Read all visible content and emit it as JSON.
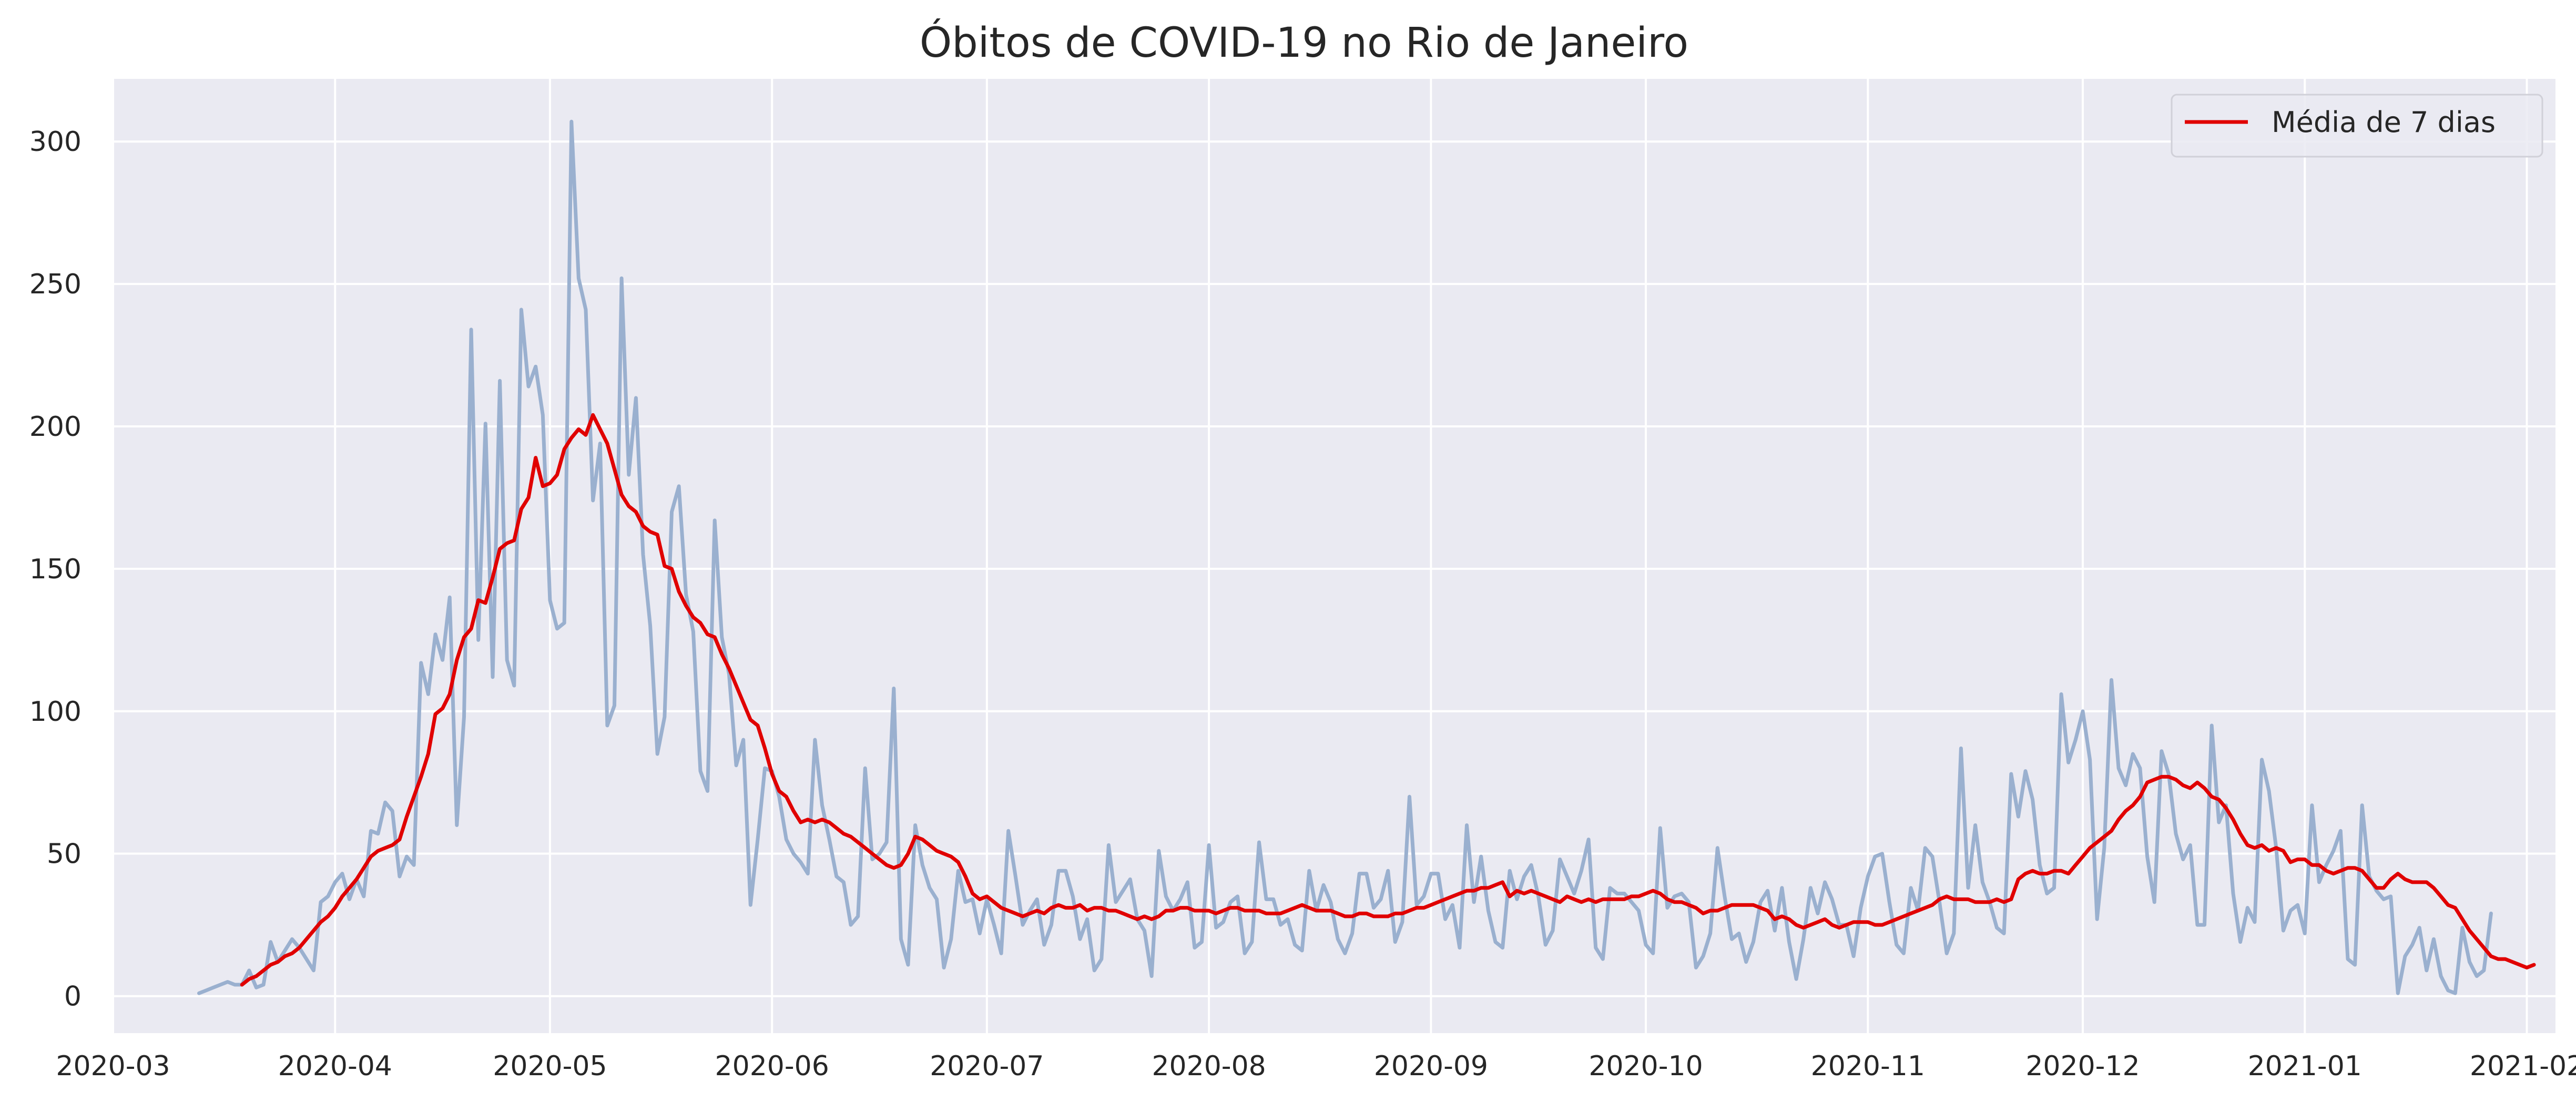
{
  "chart_data": {
    "type": "line",
    "title": "Óbitos de COVID-19 no Rio de Janeiro",
    "xlabel": "",
    "ylabel": "",
    "x_range": [
      "2020-03-01",
      "2021-02-05"
    ],
    "ylim": [
      -13,
      322
    ],
    "grid": true,
    "legend_position": "top-right",
    "colors": {
      "background": "#eaeaf2",
      "grid": "#ffffff",
      "daily": "#9ab0cf",
      "avg": "#e00000"
    },
    "x_ticks": [
      "2020-03",
      "2020-04",
      "2020-05",
      "2020-06",
      "2020-07",
      "2020-08",
      "2020-09",
      "2020-10",
      "2020-11",
      "2020-12",
      "2021-01",
      "2021-02"
    ],
    "y_ticks": [
      "0",
      "50",
      "100",
      "150",
      "200",
      "250",
      "300"
    ],
    "series": [
      {
        "type": "daily",
        "start_date": "2020-03-13",
        "values": [
          1,
          2,
          3,
          4,
          5,
          4,
          4,
          9,
          3,
          4,
          19,
          12,
          16,
          20,
          17,
          13,
          9,
          33,
          35,
          40,
          43,
          34,
          41,
          35,
          58,
          57,
          68,
          65,
          42,
          49,
          46,
          117,
          106,
          127,
          118,
          140,
          60,
          98,
          234,
          125,
          201,
          112,
          216,
          118,
          109,
          241,
          214,
          221,
          204,
          139,
          129,
          131,
          307,
          252,
          241,
          174,
          194,
          95,
          102,
          252,
          183,
          210,
          155,
          130,
          85,
          98,
          170,
          179,
          141,
          128,
          79,
          72,
          167,
          126,
          113,
          81,
          90,
          32,
          55,
          80,
          79,
          70,
          55,
          50,
          47,
          43,
          90,
          67,
          55,
          42,
          40,
          25,
          28,
          80,
          48,
          50,
          54,
          108,
          20,
          11,
          60,
          46,
          38,
          34,
          10,
          20,
          44,
          33,
          34,
          22,
          34,
          25,
          15,
          58,
          42,
          25,
          30,
          34,
          18,
          25,
          44,
          44,
          35,
          20,
          27,
          9,
          13,
          53,
          33,
          37,
          41,
          27,
          23,
          7,
          51,
          35,
          30,
          34,
          40,
          17,
          19,
          53,
          24,
          26,
          33,
          35,
          15,
          19,
          54,
          34,
          34,
          25,
          27,
          18,
          16,
          44,
          30,
          39,
          33,
          20,
          15,
          22,
          43,
          43,
          31,
          34,
          44,
          19,
          26,
          70,
          32,
          35,
          43,
          43,
          27,
          32,
          17,
          60,
          33,
          49,
          30,
          19,
          17,
          44,
          34,
          42,
          46,
          35,
          18,
          23,
          48,
          42,
          36,
          44,
          55,
          17,
          13,
          38,
          36,
          36,
          33,
          30,
          18,
          15,
          59,
          31,
          35,
          36,
          33,
          10,
          14,
          22,
          52,
          35,
          20,
          22,
          12,
          19,
          33,
          37,
          23,
          38,
          19,
          6,
          20,
          38,
          29,
          40,
          34,
          25,
          25,
          14,
          31,
          42,
          49,
          50,
          33,
          18,
          15,
          38,
          30,
          52,
          49,
          33,
          15,
          22,
          87,
          38,
          60,
          40,
          33,
          24,
          22,
          78,
          63,
          79,
          69,
          46,
          36,
          38,
          106,
          82,
          90,
          100,
          83,
          27,
          52,
          111,
          80,
          74,
          85,
          80,
          49,
          33,
          86,
          78,
          57,
          48,
          53,
          25,
          25,
          95,
          61,
          67,
          36,
          19,
          31,
          26,
          83,
          72,
          52,
          23,
          30,
          32,
          22,
          67,
          40,
          46,
          51,
          58,
          13,
          11,
          67,
          42,
          37,
          34,
          35,
          1,
          14,
          18,
          24,
          9,
          20,
          7,
          2,
          1,
          24,
          12,
          7,
          9,
          29
        ]
      },
      {
        "type": "rolling_avg",
        "name": "Média de 7 dias",
        "start_date": "2020-03-19",
        "values": [
          4,
          6,
          7,
          9,
          11,
          12,
          14,
          15,
          17,
          20,
          23,
          26,
          28,
          31,
          35,
          38,
          41,
          45,
          49,
          51,
          52,
          53,
          55,
          63,
          70,
          77,
          85,
          99,
          101,
          106,
          118,
          126,
          129,
          139,
          138,
          147,
          157,
          159,
          160,
          171,
          175,
          189,
          179,
          180,
          183,
          192,
          196,
          199,
          197,
          204,
          199,
          194,
          185,
          176,
          172,
          170,
          165,
          163,
          162,
          151,
          150,
          142,
          137,
          133,
          131,
          127,
          126,
          120,
          115,
          109,
          103,
          97,
          95,
          87,
          78,
          72,
          70,
          65,
          61,
          62,
          61,
          62,
          61,
          59,
          57,
          56,
          54,
          52,
          50,
          48,
          46,
          45,
          46,
          50,
          56,
          55,
          53,
          51,
          50,
          49,
          47,
          42,
          36,
          34,
          35,
          33,
          31,
          30,
          29,
          28,
          29,
          30,
          29,
          31,
          32,
          31,
          31,
          32,
          30,
          31,
          31,
          30,
          30,
          29,
          28,
          27,
          28,
          27,
          28,
          30,
          30,
          31,
          31,
          30,
          30,
          30,
          29,
          30,
          31,
          31,
          30,
          30,
          30,
          29,
          29,
          29,
          30,
          31,
          32,
          31,
          30,
          30,
          30,
          29,
          28,
          28,
          29,
          29,
          28,
          28,
          28,
          29,
          29,
          30,
          31,
          31,
          32,
          33,
          34,
          35,
          36,
          37,
          37,
          38,
          38,
          39,
          40,
          35,
          37,
          36,
          37,
          36,
          35,
          34,
          33,
          35,
          34,
          33,
          34,
          33,
          34,
          34,
          34,
          34,
          35,
          35,
          36,
          37,
          36,
          34,
          33,
          33,
          32,
          31,
          29,
          30,
          30,
          31,
          32,
          32,
          32,
          32,
          31,
          30,
          27,
          28,
          27,
          25,
          24,
          25,
          26,
          27,
          25,
          24,
          25,
          26,
          26,
          26,
          25,
          25,
          26,
          27,
          28,
          29,
          30,
          31,
          32,
          34,
          35,
          34,
          34,
          34,
          33,
          33,
          33,
          34,
          33,
          34,
          41,
          43,
          44,
          43,
          43,
          44,
          44,
          43,
          46,
          49,
          52,
          54,
          56,
          58,
          62,
          65,
          67,
          70,
          75,
          76,
          77,
          77,
          76,
          74,
          73,
          75,
          73,
          70,
          69,
          66,
          62,
          57,
          53,
          52,
          53,
          51,
          52,
          51,
          47,
          48,
          48,
          46,
          46,
          44,
          43,
          44,
          45,
          45,
          44,
          41,
          38,
          38,
          41,
          43,
          41,
          40,
          40,
          40,
          38,
          35,
          32,
          31,
          27,
          23,
          20,
          17,
          14,
          13,
          13,
          12,
          11,
          10,
          11
        ]
      }
    ]
  }
}
